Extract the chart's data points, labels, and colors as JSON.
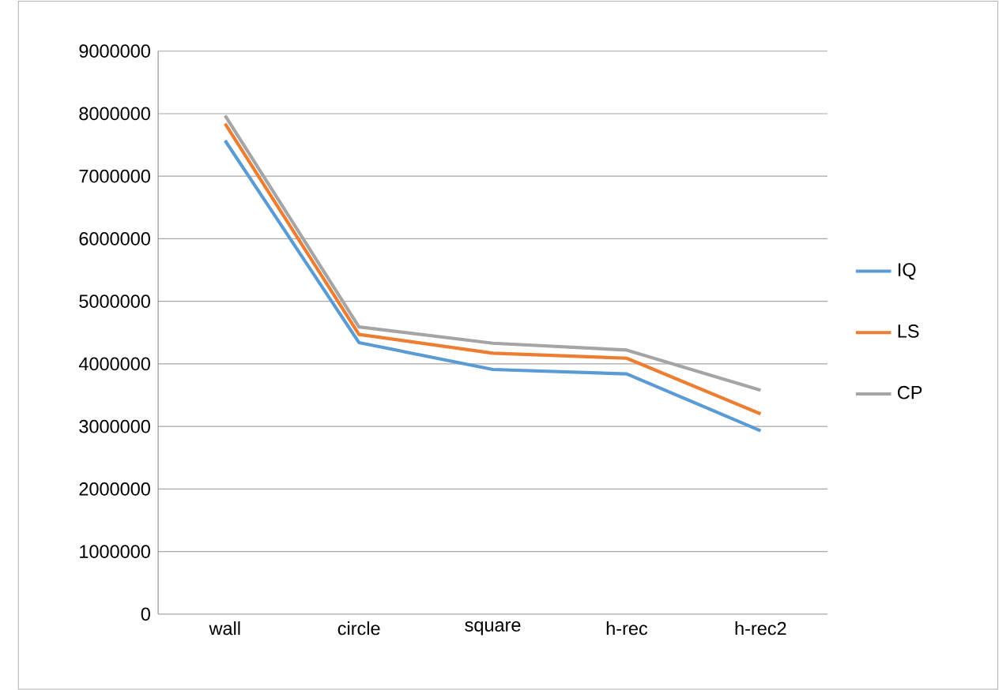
{
  "chart_data": {
    "type": "line",
    "categories": [
      "wall",
      "circle",
      "square",
      "h-rec",
      "h-rec2"
    ],
    "series": [
      {
        "name": "IQ",
        "color": "#5b9bd5",
        "values": [
          7570000,
          4340000,
          3910000,
          3840000,
          2930000
        ]
      },
      {
        "name": "LS",
        "color": "#ed7d31",
        "values": [
          7840000,
          4470000,
          4170000,
          4090000,
          3200000
        ]
      },
      {
        "name": "CP",
        "color": "#a5a5a5",
        "values": [
          7970000,
          4590000,
          4330000,
          4220000,
          3580000
        ]
      }
    ],
    "ylim": [
      0,
      9000000
    ],
    "yticks": [
      0,
      1000000,
      2000000,
      3000000,
      4000000,
      5000000,
      6000000,
      7000000,
      8000000,
      9000000
    ],
    "grid": "y",
    "legend": "right",
    "marker": "none",
    "line_style": "solid"
  }
}
